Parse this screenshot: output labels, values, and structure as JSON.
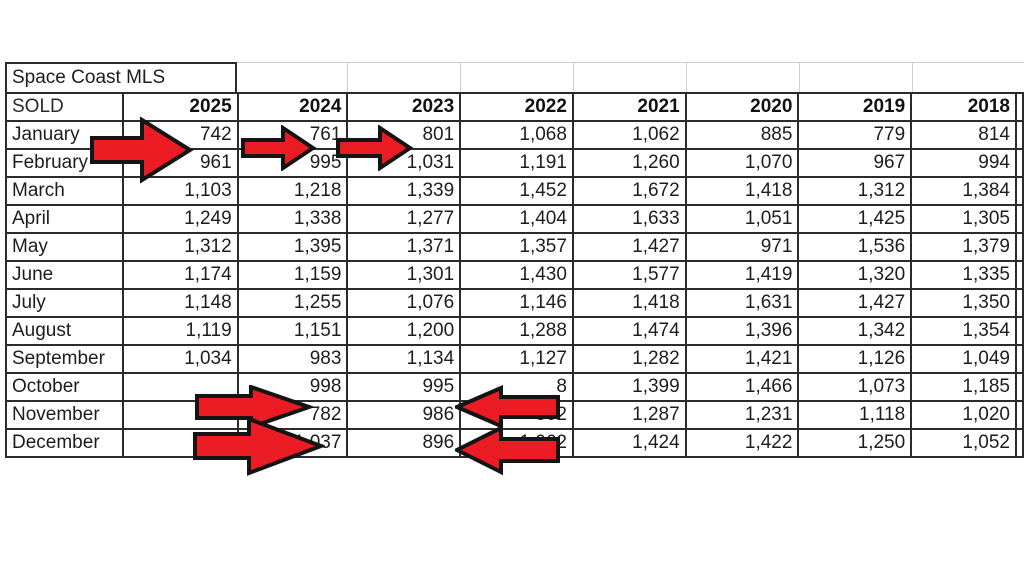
{
  "title": "Space Coast MLS",
  "table": {
    "corner_label": "SOLD",
    "years": [
      "2025",
      "2024",
      "2023",
      "2022",
      "2021",
      "2020",
      "2019",
      "2018"
    ],
    "rows": [
      {
        "month": "January",
        "values": [
          "742",
          "761",
          "801",
          "1,068",
          "1,062",
          "885",
          "779",
          "814"
        ]
      },
      {
        "month": "February",
        "values": [
          "961",
          "995",
          "1,031",
          "1,191",
          "1,260",
          "1,070",
          "967",
          "994"
        ]
      },
      {
        "month": "March",
        "values": [
          "1,103",
          "1,218",
          "1,339",
          "1,452",
          "1,672",
          "1,418",
          "1,312",
          "1,384"
        ]
      },
      {
        "month": "April",
        "values": [
          "1,249",
          "1,338",
          "1,277",
          "1,404",
          "1,633",
          "1,051",
          "1,425",
          "1,305"
        ]
      },
      {
        "month": "May",
        "values": [
          "1,312",
          "1,395",
          "1,371",
          "1,357",
          "1,427",
          "971",
          "1,536",
          "1,379"
        ]
      },
      {
        "month": "June",
        "values": [
          "1,174",
          "1,159",
          "1,301",
          "1,430",
          "1,577",
          "1,419",
          "1,320",
          "1,335"
        ]
      },
      {
        "month": "July",
        "values": [
          "1,148",
          "1,255",
          "1,076",
          "1,146",
          "1,418",
          "1,631",
          "1,427",
          "1,350"
        ]
      },
      {
        "month": "August",
        "values": [
          "1,119",
          "1,151",
          "1,200",
          "1,288",
          "1,474",
          "1,396",
          "1,342",
          "1,354"
        ]
      },
      {
        "month": "September",
        "values": [
          "1,034",
          "983",
          "1,134",
          "1,127",
          "1,282",
          "1,421",
          "1,126",
          "1,049"
        ]
      },
      {
        "month": "October",
        "values": [
          "",
          "998",
          "995",
          "8",
          "1,399",
          "1,466",
          "1,073",
          "1,185"
        ]
      },
      {
        "month": "November",
        "values": [
          "",
          "782",
          "986",
          "862",
          "1,287",
          "1,231",
          "1,118",
          "1,020"
        ]
      },
      {
        "month": "December",
        "values": [
          "",
          "1,037",
          "896",
          "1,062",
          "1,424",
          "1,422",
          "1,250",
          "1,052"
        ]
      }
    ]
  },
  "annotations": {
    "arrow_fill": "#ec1c24",
    "arrow_outline": "#141414",
    "arrows": [
      {
        "direction": "right",
        "points_at": "January 2025 value 742"
      },
      {
        "direction": "right",
        "points_at": "January 2024 value 761"
      },
      {
        "direction": "right",
        "points_at": "January 2023 value 801"
      },
      {
        "direction": "right",
        "points_at": "October 2024 value 998"
      },
      {
        "direction": "right",
        "points_at": "November/December 2024 values 782 and 1,037"
      },
      {
        "direction": "left",
        "points_at": "October 2023 value 995"
      },
      {
        "direction": "left",
        "points_at": "November/December 2023 values 986 and 896"
      }
    ],
    "note": "2022 October/November/December cells are partially covered by left-pointing arrows; visible fragments are 8, 862, 1,062"
  },
  "colors": {
    "background": "#ffffff",
    "table_border": "#2b2b2b",
    "grid_light": "#cfcfcf",
    "text": "#1d1d1f"
  }
}
